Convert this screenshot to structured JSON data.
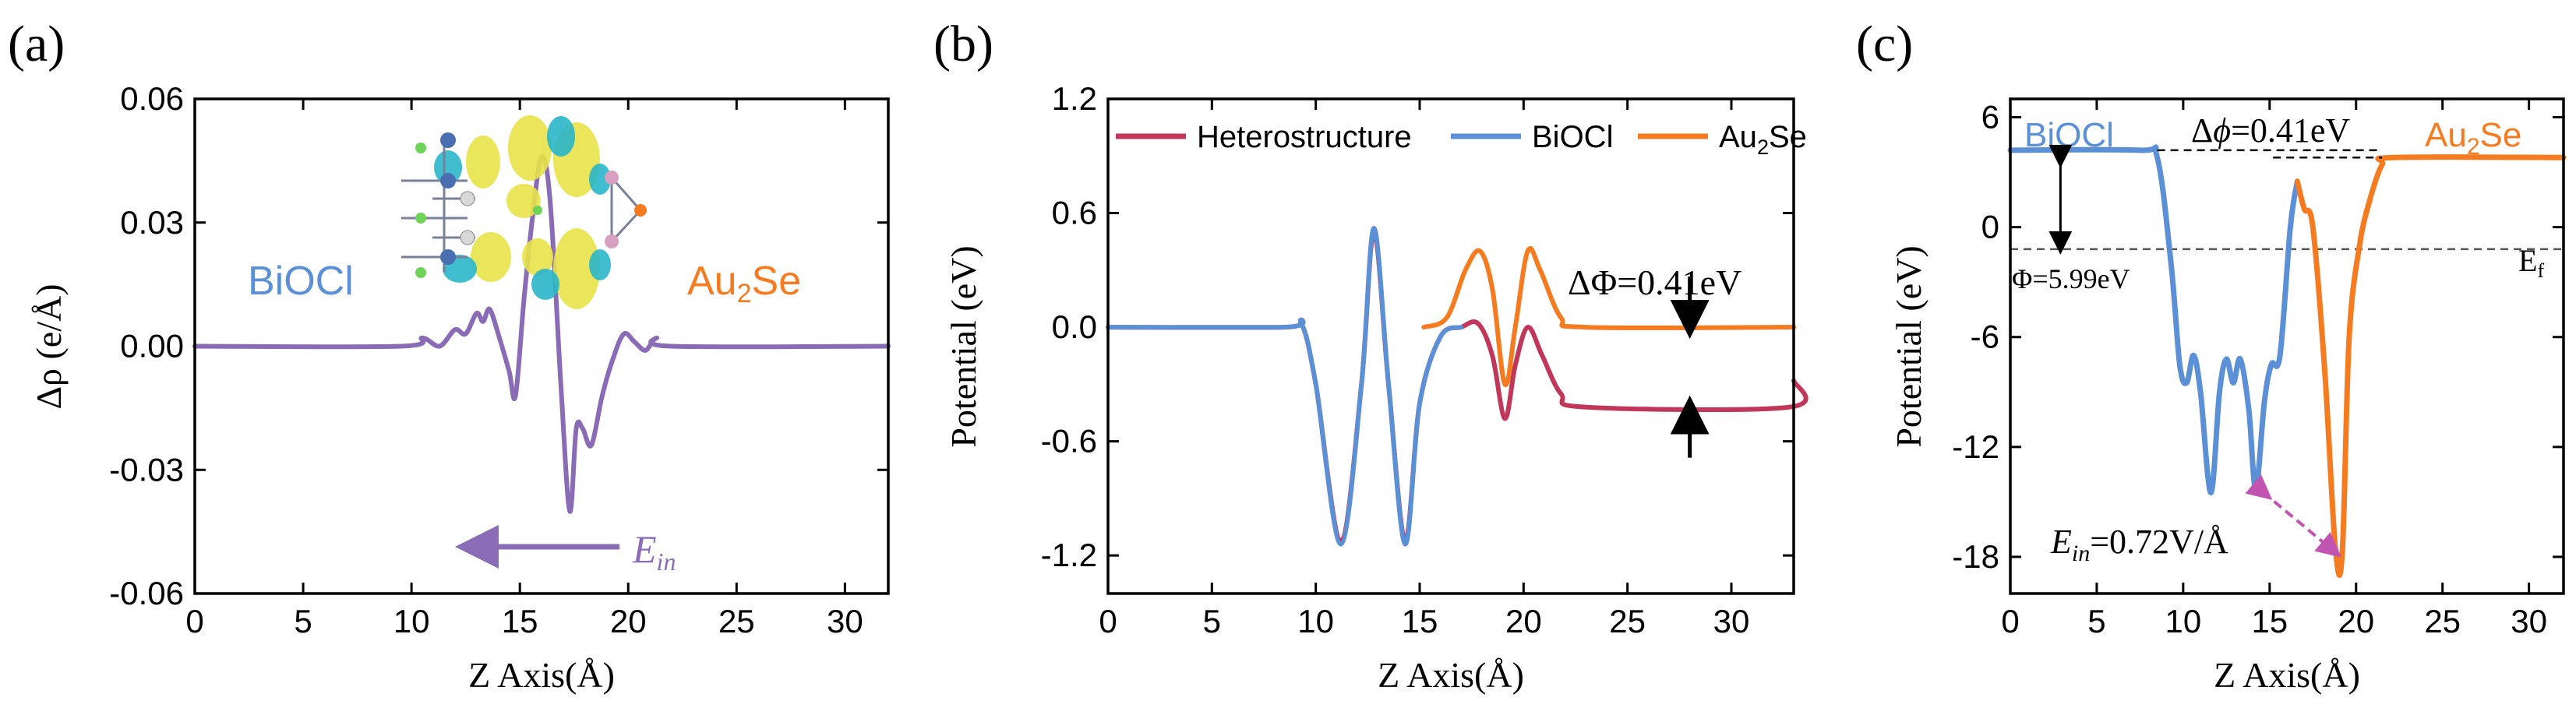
{
  "colors": {
    "purple": "#8a6bb5",
    "blue": "#5b8fd6",
    "orange": "#f47b20",
    "crimson": "#c0375a",
    "magenta": "#c054b0",
    "black": "#000000"
  },
  "chart_data": [
    {
      "id": "a",
      "type": "line",
      "panel_label": "(a)",
      "xlabel": "Z Axis(Å)",
      "ylabel": "Δρ (e/Å)",
      "xlim": [
        0,
        32
      ],
      "ylim": [
        -0.06,
        0.06
      ],
      "xticks": [
        "0",
        "5",
        "10",
        "15",
        "20",
        "25",
        "30"
      ],
      "yticks": [
        "0.06",
        "0.03",
        "0.00",
        "-0.03",
        "-0.06"
      ],
      "series": [
        {
          "name": "Δρ",
          "color": "#8a6bb5",
          "points": [
            [
              0,
              0
            ],
            [
              9.5,
              0
            ],
            [
              10.5,
              0.002
            ],
            [
              11.3,
              0
            ],
            [
              12,
              0.004
            ],
            [
              12.5,
              0.003
            ],
            [
              13,
              0.008
            ],
            [
              13.3,
              0.006
            ],
            [
              13.6,
              0.009
            ],
            [
              14,
              0.003
            ],
            [
              14.5,
              -0.006
            ],
            [
              14.8,
              -0.012
            ],
            [
              15.2,
              0.012
            ],
            [
              15.6,
              0.032
            ],
            [
              16,
              0.046
            ],
            [
              16.4,
              0.035
            ],
            [
              16.9,
              -0.01
            ],
            [
              17.3,
              -0.04
            ],
            [
              17.6,
              -0.02
            ],
            [
              17.9,
              -0.02
            ],
            [
              18.3,
              -0.024
            ],
            [
              18.8,
              -0.012
            ],
            [
              19.3,
              -0.003
            ],
            [
              19.8,
              0.003
            ],
            [
              20.3,
              0.001
            ],
            [
              20.8,
              -0.001
            ],
            [
              21.3,
              0.002
            ],
            [
              22,
              0
            ],
            [
              32,
              0
            ]
          ]
        }
      ],
      "annotations": {
        "left_material": "BiOCl",
        "right_material": "Au",
        "right_material_sub": "2",
        "right_material_tail": "Se",
        "field_label_main": "E",
        "field_label_sub": "in"
      }
    },
    {
      "id": "b",
      "type": "line",
      "panel_label": "(b)",
      "xlabel": "Z Axis(Å)",
      "ylabel": "Potential (eV)",
      "xlim": [
        0,
        33
      ],
      "ylim": [
        -1.4,
        1.2
      ],
      "xticks": [
        "0",
        "5",
        "10",
        "15",
        "20",
        "25",
        "30"
      ],
      "yticks": [
        "1.2",
        "0.6",
        "0.0",
        "-0.6",
        "-1.2"
      ],
      "legend": {
        "placement": "top",
        "items": [
          {
            "label": "Heterostructure",
            "color": "#c0375a"
          },
          {
            "label": "BiOCl",
            "color": "#5b8fd6"
          },
          {
            "label": "Au",
            "sub": "2",
            "tail": "Se",
            "color": "#f47b20"
          }
        ]
      },
      "series": [
        {
          "name": "Heterostructure",
          "color": "#c0375a",
          "points": [
            [
              0,
              0
            ],
            [
              8.5,
              0
            ],
            [
              9.3,
              0.02
            ],
            [
              10,
              -0.3
            ],
            [
              11.2,
              -1.12
            ],
            [
              12.2,
              -0.3
            ],
            [
              12.8,
              0.5
            ],
            [
              13.5,
              -0.3
            ],
            [
              14.3,
              -1.12
            ],
            [
              15,
              -0.4
            ],
            [
              16,
              -0.05
            ],
            [
              17,
              0
            ],
            [
              17.8,
              0.02
            ],
            [
              18.5,
              -0.15
            ],
            [
              19.1,
              -0.48
            ],
            [
              19.6,
              -0.2
            ],
            [
              20.2,
              0
            ],
            [
              20.9,
              -0.15
            ],
            [
              21.8,
              -0.35
            ],
            [
              23,
              -0.42
            ],
            [
              32.8,
              -0.42
            ],
            [
              33,
              -0.28
            ]
          ]
        },
        {
          "name": "BiOCl",
          "color": "#5b8fd6",
          "points": [
            [
              0,
              0
            ],
            [
              8.5,
              0
            ],
            [
              9.3,
              0.02
            ],
            [
              10,
              -0.3
            ],
            [
              11.2,
              -1.14
            ],
            [
              12.2,
              -0.3
            ],
            [
              12.8,
              0.52
            ],
            [
              13.5,
              -0.3
            ],
            [
              14.3,
              -1.14
            ],
            [
              15,
              -0.4
            ],
            [
              16,
              -0.05
            ],
            [
              17,
              0
            ]
          ]
        },
        {
          "name": "Au2Se",
          "color": "#f47b20",
          "points": [
            [
              15.2,
              0
            ],
            [
              16.3,
              0.05
            ],
            [
              17.2,
              0.3
            ],
            [
              17.9,
              0.4
            ],
            [
              18.5,
              0.2
            ],
            [
              19.1,
              -0.3
            ],
            [
              19.6,
              0
            ],
            [
              20.2,
              0.4
            ],
            [
              20.8,
              0.3
            ],
            [
              21.8,
              0.05
            ],
            [
              23,
              0
            ],
            [
              33,
              0
            ]
          ]
        }
      ],
      "annotations": {
        "delta_label": "ΔΦ=0.41eV",
        "arrow_x": 28,
        "arrow_top_y": 0,
        "arrow_bottom_y": -0.42
      }
    },
    {
      "id": "c",
      "type": "line",
      "panel_label": "(c)",
      "xlabel": "Z Axis(Å)",
      "ylabel": "Potential (eV)",
      "xlim": [
        0,
        32
      ],
      "ylim": [
        -20,
        7
      ],
      "xticks": [
        "0",
        "5",
        "10",
        "15",
        "20",
        "25",
        "30"
      ],
      "yticks": [
        "6",
        "0",
        "-6",
        "-12",
        "-18"
      ],
      "series": [
        {
          "name": "BiOCl",
          "color": "#5b8fd6",
          "points": [
            [
              0,
              4.2
            ],
            [
              7.5,
              4.2
            ],
            [
              8.5,
              3.8
            ],
            [
              9.3,
              -2
            ],
            [
              9.8,
              -7.5
            ],
            [
              10.2,
              -8.5
            ],
            [
              10.6,
              -7
            ],
            [
              11,
              -9
            ],
            [
              11.6,
              -14.5
            ],
            [
              12.1,
              -9
            ],
            [
              12.5,
              -7.2
            ],
            [
              12.9,
              -8.5
            ],
            [
              13.3,
              -7.2
            ],
            [
              13.8,
              -10
            ],
            [
              14.2,
              -14.3
            ],
            [
              14.7,
              -9.5
            ],
            [
              15.1,
              -7.5
            ],
            [
              15.6,
              -7
            ],
            [
              16.2,
              0
            ],
            [
              16.6,
              2.5
            ]
          ]
        },
        {
          "name": "Au2Se",
          "color": "#f47b20",
          "points": [
            [
              16.6,
              2.5
            ],
            [
              17,
              1
            ],
            [
              17.5,
              0
            ],
            [
              18.2,
              -8
            ],
            [
              18.8,
              -17.5
            ],
            [
              19.2,
              -17.8
            ],
            [
              19.6,
              -6
            ],
            [
              20.2,
              -1
            ],
            [
              20.8,
              1.5
            ],
            [
              21.5,
              3.4
            ],
            [
              22.2,
              3.8
            ],
            [
              32,
              3.8
            ]
          ]
        }
      ],
      "annotations": {
        "left_material": "BiOCl",
        "right_material": "Au",
        "right_material_sub": "2",
        "right_material_tail": "Se",
        "delta_main": "Δ",
        "delta_symbol": "ϕ",
        "delta_value": "=0.41eV",
        "fermi_main": "E",
        "fermi_sub": "f",
        "fermi_level": -1.2,
        "phi_label": "Φ=5.99eV",
        "field_main": "E",
        "field_sub": "in",
        "field_value": "=0.72V/Å"
      }
    }
  ]
}
